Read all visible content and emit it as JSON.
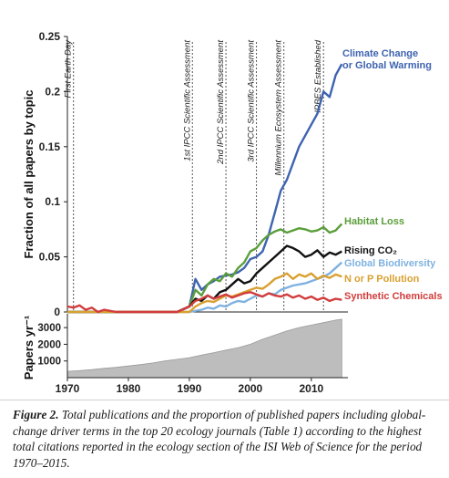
{
  "chart_data": [
    {
      "type": "line",
      "ylabel": "Fraction of all papers by topic",
      "xlim": [
        1970,
        2016
      ],
      "ylim": [
        0,
        0.25
      ],
      "yticks": [
        {
          "value": 0,
          "label": "0"
        },
        {
          "value": 0.05,
          "label": "0.05"
        },
        {
          "value": 0.1,
          "label": "0.1"
        },
        {
          "value": 0.15,
          "label": "0.15"
        },
        {
          "value": 0.2,
          "label": "0.2"
        },
        {
          "value": 0.25,
          "label": "0.25"
        }
      ],
      "annotations": [
        {
          "x": 1971,
          "label": "First Earth Day"
        },
        {
          "x": 1990.5,
          "label": "1st IPCC Scientific Assessment"
        },
        {
          "x": 1996,
          "label": "2nd IPCC Scientific Assessment"
        },
        {
          "x": 2001,
          "label": "3rd IPCC Scientific Assessment"
        },
        {
          "x": 2005.5,
          "label": "Millennium Ecosystem Assessment"
        },
        {
          "x": 2012,
          "label": "IPBES Established"
        }
      ],
      "series": [
        {
          "name": "Climate Change or Global Warming",
          "color": "#3e63b0",
          "x": [
            1970,
            1988,
            1990,
            1991,
            1992,
            1993,
            1994,
            1995,
            1996,
            1997,
            1998,
            1999,
            2000,
            2001,
            2002,
            2003,
            2004,
            2005,
            2006,
            2007,
            2008,
            2009,
            2010,
            2011,
            2012,
            2013,
            2014,
            2015
          ],
          "values": [
            0.0,
            0.0,
            0.005,
            0.03,
            0.02,
            0.025,
            0.028,
            0.032,
            0.033,
            0.034,
            0.036,
            0.04,
            0.048,
            0.05,
            0.055,
            0.07,
            0.09,
            0.11,
            0.12,
            0.135,
            0.15,
            0.16,
            0.17,
            0.18,
            0.2,
            0.195,
            0.215,
            0.225
          ]
        },
        {
          "name": "Habitat Loss",
          "color": "#5a9e3a",
          "x": [
            1970,
            1988,
            1990,
            1991,
            1992,
            1993,
            1994,
            1995,
            1996,
            1997,
            1998,
            1999,
            2000,
            2001,
            2002,
            2003,
            2004,
            2005,
            2006,
            2007,
            2008,
            2009,
            2010,
            2011,
            2012,
            2013,
            2014,
            2015
          ],
          "values": [
            0.0,
            0.0,
            0.005,
            0.02,
            0.015,
            0.025,
            0.03,
            0.028,
            0.035,
            0.032,
            0.04,
            0.045,
            0.055,
            0.058,
            0.065,
            0.07,
            0.073,
            0.075,
            0.072,
            0.074,
            0.076,
            0.075,
            0.073,
            0.074,
            0.077,
            0.072,
            0.074,
            0.08
          ]
        },
        {
          "name": "Rising CO₂",
          "color": "#111111",
          "x": [
            1970,
            1988,
            1990,
            1991,
            1992,
            1993,
            1994,
            1995,
            1996,
            1997,
            1998,
            1999,
            2000,
            2001,
            2002,
            2003,
            2004,
            2005,
            2006,
            2007,
            2008,
            2009,
            2010,
            2011,
            2012,
            2013,
            2014,
            2015
          ],
          "values": [
            0.0,
            0.0,
            0.005,
            0.012,
            0.01,
            0.015,
            0.012,
            0.018,
            0.02,
            0.025,
            0.03,
            0.026,
            0.028,
            0.035,
            0.04,
            0.045,
            0.05,
            0.055,
            0.06,
            0.058,
            0.055,
            0.05,
            0.052,
            0.056,
            0.05,
            0.054,
            0.052,
            0.055
          ]
        },
        {
          "name": "Global Biodiversity",
          "color": "#7fb2e0",
          "x": [
            1970,
            1990,
            1992,
            1993,
            1994,
            1995,
            1996,
            1997,
            1998,
            1999,
            2000,
            2001,
            2002,
            2003,
            2004,
            2005,
            2006,
            2007,
            2008,
            2009,
            2010,
            2011,
            2012,
            2013,
            2014,
            2015
          ],
          "values": [
            0.0,
            0.0,
            0.002,
            0.004,
            0.003,
            0.006,
            0.005,
            0.008,
            0.01,
            0.009,
            0.012,
            0.015,
            0.014,
            0.017,
            0.016,
            0.02,
            0.022,
            0.024,
            0.025,
            0.026,
            0.028,
            0.03,
            0.032,
            0.035,
            0.04,
            0.045
          ]
        },
        {
          "name": "N or P Pollution",
          "color": "#d9a030",
          "x": [
            1970,
            1990,
            1991,
            1992,
            1993,
            1994,
            1995,
            1996,
            1997,
            1998,
            1999,
            2000,
            2001,
            2002,
            2003,
            2004,
            2005,
            2006,
            2007,
            2008,
            2009,
            2010,
            2011,
            2012,
            2013,
            2014,
            2015
          ],
          "values": [
            0.0,
            0.0,
            0.005,
            0.008,
            0.01,
            0.009,
            0.012,
            0.015,
            0.014,
            0.016,
            0.018,
            0.02,
            0.022,
            0.021,
            0.025,
            0.03,
            0.032,
            0.035,
            0.03,
            0.034,
            0.032,
            0.035,
            0.03,
            0.033,
            0.031,
            0.034,
            0.032
          ]
        },
        {
          "name": "Synthetic Chemicals",
          "color": "#d23c3c",
          "x": [
            1970,
            1971,
            1972,
            1973,
            1974,
            1975,
            1976,
            1978,
            1980,
            1985,
            1988,
            1990,
            1991,
            1992,
            1993,
            1994,
            1995,
            1996,
            1997,
            1998,
            1999,
            2000,
            2001,
            2002,
            2003,
            2004,
            2005,
            2006,
            2007,
            2008,
            2009,
            2010,
            2011,
            2012,
            2013,
            2014,
            2015
          ],
          "values": [
            0.005,
            0.004,
            0.006,
            0.002,
            0.004,
            0.0,
            0.002,
            0.0,
            0.0,
            0.0,
            0.0,
            0.005,
            0.01,
            0.012,
            0.015,
            0.012,
            0.014,
            0.016,
            0.013,
            0.015,
            0.017,
            0.018,
            0.016,
            0.014,
            0.017,
            0.015,
            0.014,
            0.016,
            0.013,
            0.015,
            0.012,
            0.014,
            0.011,
            0.013,
            0.01,
            0.012,
            0.011
          ]
        }
      ]
    },
    {
      "type": "area",
      "ylabel": "Papers yr⁻¹",
      "xlabel": "",
      "xlim": [
        1970,
        2016
      ],
      "ylim": [
        0,
        3500
      ],
      "xticks": [
        1970,
        1980,
        1990,
        2000,
        2010
      ],
      "yticks": [
        1000,
        2000,
        3000
      ],
      "fill_color": "#bdbdbd",
      "x": [
        1970,
        1972,
        1974,
        1976,
        1978,
        1980,
        1982,
        1984,
        1986,
        1988,
        1990,
        1992,
        1994,
        1996,
        1998,
        2000,
        2002,
        2004,
        2006,
        2008,
        2010,
        2012,
        2014,
        2015
      ],
      "values": [
        380,
        420,
        480,
        560,
        620,
        700,
        780,
        880,
        1000,
        1100,
        1200,
        1350,
        1500,
        1650,
        1800,
        2000,
        2300,
        2550,
        2800,
        3000,
        3150,
        3300,
        3450,
        3500
      ]
    }
  ],
  "caption": {
    "label": "Figure 2.",
    "text": " Total publications and the proportion of published papers including global-change driver terms in the top 20 ecology journals (Table 1) according to the highest total citations reported in the ecology section of the ISI Web of Science for the period 1970–2015."
  }
}
